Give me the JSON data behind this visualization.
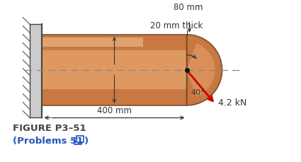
{
  "bg_color": "#ffffff",
  "bracket_color_base": "#c87840",
  "bracket_color_light": "#e8a870",
  "bracket_color_highlight": "#f0c090",
  "wall_color": "#cccccc",
  "wall_hatch_color": "#555555",
  "force_color": "#cc0000",
  "force_label": "4.2 kN",
  "angle_label": "40°",
  "dim_80mm": "80 mm",
  "dim_20mm_thick": "20 mm thick",
  "dim_400mm": "400 mm",
  "figure_label": "FIGURE P3–51",
  "problems_label": "(Problems 51 □)",
  "centerline_color": "#888888",
  "outline_color": "#7a5030",
  "text_color": "#333333",
  "blue_color": "#2255bb"
}
